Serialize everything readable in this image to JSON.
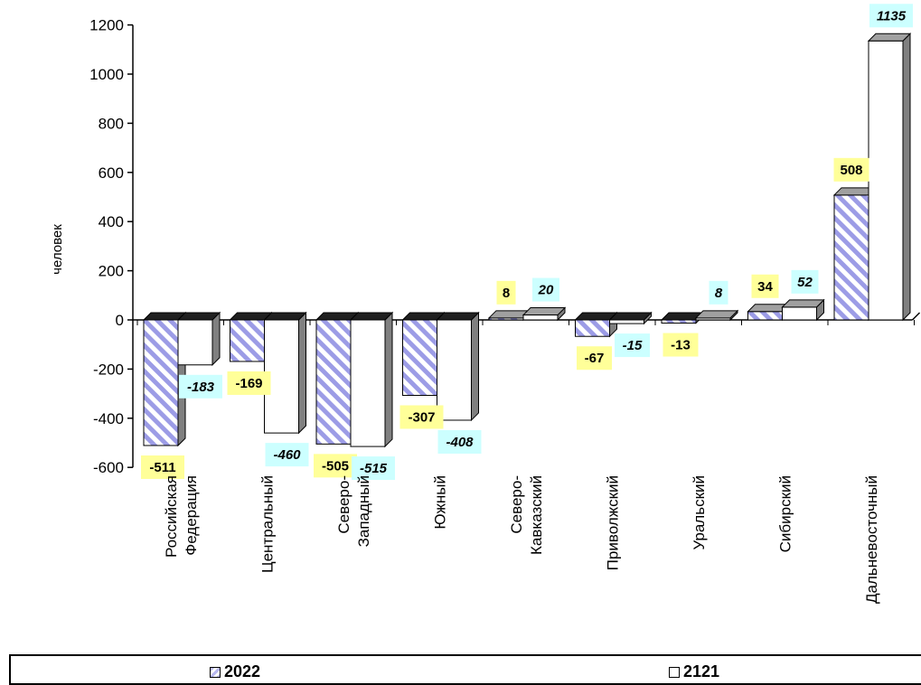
{
  "chart_data": {
    "type": "bar",
    "ylabel": "человек",
    "ylim": [
      -600,
      1200
    ],
    "yticks": [
      -600,
      -400,
      -200,
      0,
      200,
      400,
      600,
      800,
      1000,
      1200
    ],
    "categories": [
      [
        "Российская",
        "Федерация"
      ],
      [
        "Центральный"
      ],
      [
        "Северо-",
        "Западный"
      ],
      [
        "Южный"
      ],
      [
        "Северо-",
        "Кавказский"
      ],
      [
        "Приволжский"
      ],
      [
        "Уральский"
      ],
      [
        "Сибирский"
      ],
      [
        "Дальневосточный"
      ]
    ],
    "series": [
      {
        "name": "2022",
        "values": [
          -511,
          -169,
          -505,
          -307,
          8,
          -67,
          -13,
          34,
          508
        ],
        "label_color": "#ffff99"
      },
      {
        "name": "2121",
        "values": [
          -183,
          -460,
          -515,
          -408,
          20,
          -15,
          8,
          52,
          1135
        ],
        "label_color": "#ccffff"
      }
    ],
    "grid": false,
    "legend_position": "bottom"
  }
}
